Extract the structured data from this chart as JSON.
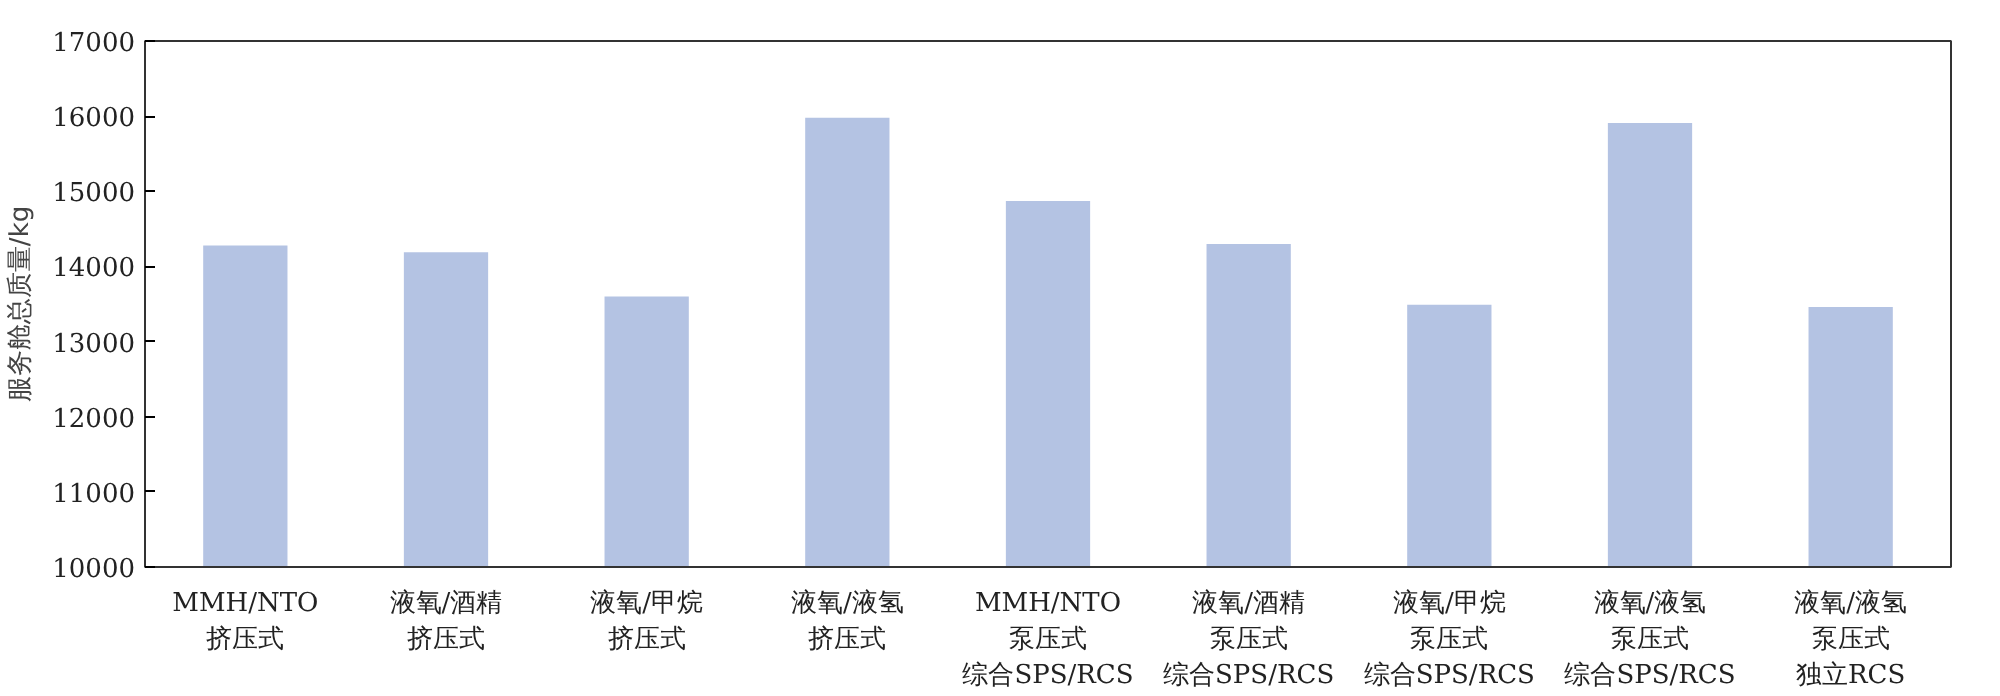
{
  "chart_data": {
    "type": "bar",
    "ylabel": "服务舱总质量/kg",
    "categories": [
      "MMH/NTO挤压式",
      "液氧/酒精挤压式",
      "液氧/甲烷挤压式",
      "液氧/液氢挤压式",
      "MMH/NTO泵压式综合SPS/RCS",
      "液氧/酒精泵压式综合SPS/RCS",
      "液氧/甲烷泵压式综合SPS/RCS",
      "液氧/液氢泵压式综合SPS/RCS",
      "液氧/液氢泵压式独立RCS"
    ],
    "values": [
      14280,
      14190,
      13600,
      15980,
      14870,
      14300,
      13490,
      15910,
      13460
    ],
    "color": "#b4c3e3",
    "ylim": [
      10000,
      17000
    ],
    "yticks": [
      10000,
      11000,
      12000,
      13000,
      14000,
      15000,
      16000,
      17000
    ],
    "grid": false
  }
}
